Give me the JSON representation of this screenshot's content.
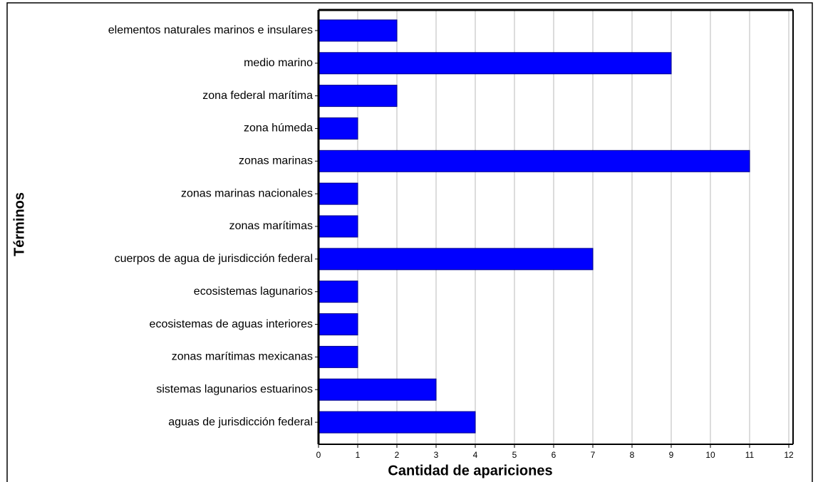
{
  "chart_data": {
    "type": "barh",
    "x_label": "Cantidad de apariciones",
    "y_label": "Términos",
    "categories": [
      "elementos naturales marinos e insulares",
      "medio marino",
      "zona federal marítima",
      "zona húmeda",
      "zonas marinas",
      "zonas marinas nacionales",
      "zonas marítimas",
      "cuerpos de agua de jurisdicción federal",
      "ecosistemas lagunarios",
      "ecosistemas de aguas interiores",
      "zonas marítimas mexicanas",
      "sistemas lagunarios estuarinos",
      "aguas de jurisdicción federal"
    ],
    "values": [
      2,
      9,
      2,
      1,
      11,
      1,
      1,
      7,
      1,
      1,
      1,
      3,
      4
    ],
    "color": "#0000ff",
    "xlim": [
      0,
      12
    ],
    "xticks": [
      0,
      1,
      2,
      3,
      4,
      5,
      6,
      7,
      8,
      9,
      10,
      11,
      12
    ],
    "grid": true
  }
}
